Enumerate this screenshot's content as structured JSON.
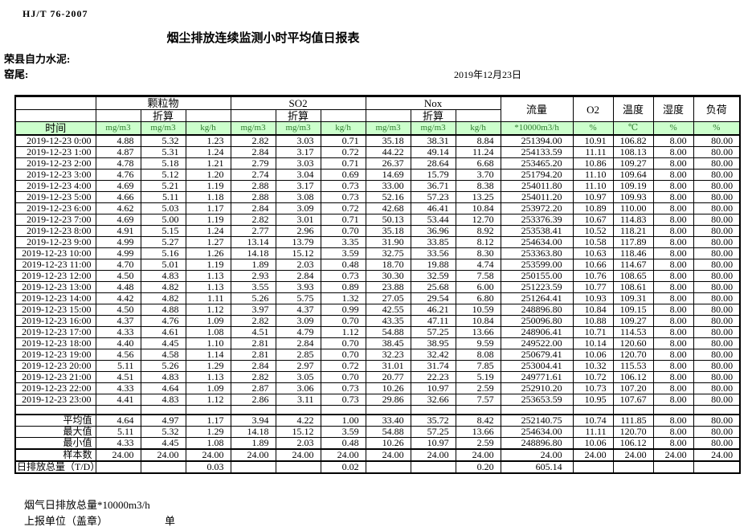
{
  "page": {
    "standard": "HJ/T  76-2007",
    "title": "烟尘排放连续监测小时平均值日报表",
    "company": "荣县自力水泥:",
    "station": "窑尾:",
    "date": "2019年12月23日"
  },
  "table": {
    "time_header": "时间",
    "converted_label": "折算",
    "groups": [
      "颗粒物",
      "SO2",
      "Nox"
    ],
    "units": [
      "mg/m3",
      "mg/m3",
      "kg/h",
      "mg/m3",
      "mg/m3",
      "kg/h",
      "mg/m3",
      "mg/m3",
      "kg/h"
    ],
    "flow": {
      "label": "流量",
      "unit": "*10000m3/h"
    },
    "o2": {
      "label": "O2",
      "unit": "%"
    },
    "temp": {
      "label": "温度",
      "unit": "℃"
    },
    "humidity": {
      "label": "湿度",
      "unit": "%"
    },
    "load": {
      "label": "负荷",
      "unit": "%"
    },
    "rows": [
      {
        "time": "2019-12-23 0:00",
        "values": [
          "4.88",
          "5.32",
          "1.23",
          "2.82",
          "3.03",
          "0.71",
          "35.18",
          "38.31",
          "8.84",
          "251394.00",
          "10.91",
          "106.82",
          "8.00",
          "80.00"
        ]
      },
      {
        "time": "2019-12-23 1:00",
        "values": [
          "4.87",
          "5.31",
          "1.24",
          "2.84",
          "3.17",
          "0.72",
          "44.22",
          "49.14",
          "11.24",
          "254133.59",
          "11.11",
          "108.13",
          "8.00",
          "80.00"
        ]
      },
      {
        "time": "2019-12-23 2:00",
        "values": [
          "4.78",
          "5.18",
          "1.21",
          "2.79",
          "3.03",
          "0.71",
          "26.37",
          "28.64",
          "6.68",
          "253465.20",
          "10.86",
          "109.27",
          "8.00",
          "80.00"
        ]
      },
      {
        "time": "2019-12-23 3:00",
        "values": [
          "4.76",
          "5.12",
          "1.20",
          "2.74",
          "3.04",
          "0.69",
          "14.69",
          "15.79",
          "3.70",
          "251794.20",
          "11.10",
          "109.64",
          "8.00",
          "80.00"
        ]
      },
      {
        "time": "2019-12-23 4:00",
        "values": [
          "4.69",
          "5.21",
          "1.19",
          "2.88",
          "3.17",
          "0.73",
          "33.00",
          "36.71",
          "8.38",
          "254011.80",
          "11.10",
          "109.19",
          "8.00",
          "80.00"
        ]
      },
      {
        "time": "2019-12-23 5:00",
        "values": [
          "4.66",
          "5.11",
          "1.18",
          "2.88",
          "3.08",
          "0.73",
          "52.16",
          "57.23",
          "13.25",
          "254011.20",
          "10.97",
          "109.93",
          "8.00",
          "80.00"
        ]
      },
      {
        "time": "2019-12-23 6:00",
        "values": [
          "4.62",
          "5.03",
          "1.17",
          "2.84",
          "3.09",
          "0.72",
          "42.68",
          "46.41",
          "10.84",
          "253972.20",
          "10.89",
          "110.00",
          "8.00",
          "80.00"
        ]
      },
      {
        "time": "2019-12-23 7:00",
        "values": [
          "4.69",
          "5.00",
          "1.19",
          "2.82",
          "3.01",
          "0.71",
          "50.13",
          "53.44",
          "12.70",
          "253376.39",
          "10.67",
          "114.83",
          "8.00",
          "80.00"
        ]
      },
      {
        "time": "2019-12-23 8:00",
        "values": [
          "4.91",
          "5.15",
          "1.24",
          "2.77",
          "2.96",
          "0.70",
          "35.18",
          "36.96",
          "8.92",
          "253538.41",
          "10.52",
          "118.21",
          "8.00",
          "80.00"
        ]
      },
      {
        "time": "2019-12-23 9:00",
        "values": [
          "4.99",
          "5.27",
          "1.27",
          "13.14",
          "13.79",
          "3.35",
          "31.90",
          "33.85",
          "8.12",
          "254634.00",
          "10.58",
          "117.89",
          "8.00",
          "80.00"
        ]
      },
      {
        "time": "2019-12-23 10:00",
        "values": [
          "4.99",
          "5.16",
          "1.26",
          "14.18",
          "15.12",
          "3.59",
          "32.75",
          "33.56",
          "8.30",
          "253363.80",
          "10.63",
          "118.46",
          "8.00",
          "80.00"
        ]
      },
      {
        "time": "2019-12-23 11:00",
        "values": [
          "4.70",
          "5.01",
          "1.19",
          "1.89",
          "2.03",
          "0.48",
          "18.70",
          "19.88",
          "4.74",
          "253599.00",
          "10.66",
          "114.67",
          "8.00",
          "80.00"
        ]
      },
      {
        "time": "2019-12-23 12:00",
        "values": [
          "4.50",
          "4.83",
          "1.13",
          "2.93",
          "2.84",
          "0.73",
          "30.30",
          "32.59",
          "7.58",
          "250155.00",
          "10.76",
          "108.65",
          "8.00",
          "80.00"
        ]
      },
      {
        "time": "2019-12-23 13:00",
        "values": [
          "4.48",
          "4.82",
          "1.13",
          "3.55",
          "3.93",
          "0.89",
          "23.88",
          "25.68",
          "6.00",
          "251223.59",
          "10.77",
          "108.61",
          "8.00",
          "80.00"
        ]
      },
      {
        "time": "2019-12-23 14:00",
        "values": [
          "4.42",
          "4.82",
          "1.11",
          "5.26",
          "5.75",
          "1.32",
          "27.05",
          "29.54",
          "6.80",
          "251264.41",
          "10.93",
          "109.31",
          "8.00",
          "80.00"
        ]
      },
      {
        "time": "2019-12-23 15:00",
        "values": [
          "4.50",
          "4.88",
          "1.12",
          "3.97",
          "4.37",
          "0.99",
          "42.55",
          "46.21",
          "10.59",
          "248896.80",
          "10.84",
          "109.15",
          "8.00",
          "80.00"
        ]
      },
      {
        "time": "2019-12-23 16:00",
        "values": [
          "4.37",
          "4.76",
          "1.09",
          "2.82",
          "3.09",
          "0.70",
          "43.35",
          "47.11",
          "10.84",
          "250096.80",
          "10.88",
          "109.27",
          "8.00",
          "80.00"
        ]
      },
      {
        "time": "2019-12-23 17:00",
        "values": [
          "4.33",
          "4.61",
          "1.08",
          "4.51",
          "4.79",
          "1.12",
          "54.88",
          "57.25",
          "13.66",
          "248906.41",
          "10.71",
          "114.53",
          "8.00",
          "80.00"
        ]
      },
      {
        "time": "2019-12-23 18:00",
        "values": [
          "4.40",
          "4.45",
          "1.10",
          "2.81",
          "2.84",
          "0.70",
          "38.45",
          "38.95",
          "9.59",
          "249522.00",
          "10.14",
          "120.60",
          "8.00",
          "80.00"
        ]
      },
      {
        "time": "2019-12-23 19:00",
        "values": [
          "4.56",
          "4.58",
          "1.14",
          "2.81",
          "2.85",
          "0.70",
          "32.23",
          "32.42",
          "8.08",
          "250679.41",
          "10.06",
          "120.70",
          "8.00",
          "80.00"
        ]
      },
      {
        "time": "2019-12-23 20:00",
        "values": [
          "5.11",
          "5.26",
          "1.29",
          "2.84",
          "2.97",
          "0.72",
          "31.01",
          "31.74",
          "7.85",
          "253004.41",
          "10.32",
          "115.53",
          "8.00",
          "80.00"
        ]
      },
      {
        "time": "2019-12-23 21:00",
        "values": [
          "4.51",
          "4.83",
          "1.13",
          "2.82",
          "3.05",
          "0.70",
          "20.77",
          "22.23",
          "5.19",
          "249771.61",
          "10.72",
          "106.12",
          "8.00",
          "80.00"
        ]
      },
      {
        "time": "2019-12-23 22:00",
        "values": [
          "4.33",
          "4.64",
          "1.09",
          "2.87",
          "3.06",
          "0.73",
          "10.26",
          "10.97",
          "2.59",
          "252910.20",
          "10.73",
          "107.20",
          "8.00",
          "80.00"
        ]
      },
      {
        "time": "2019-12-23 23:00",
        "values": [
          "4.41",
          "4.83",
          "1.12",
          "2.86",
          "3.11",
          "0.73",
          "29.86",
          "32.66",
          "7.57",
          "253653.59",
          "10.95",
          "107.67",
          "8.00",
          "80.00"
        ]
      }
    ],
    "summary": [
      {
        "label": "平均值",
        "values": [
          "4.64",
          "4.97",
          "1.17",
          "3.94",
          "4.22",
          "1.00",
          "33.40",
          "35.72",
          "8.42",
          "252140.75",
          "10.74",
          "111.85",
          "8.00",
          "80.00"
        ]
      },
      {
        "label": "最大值",
        "values": [
          "5.11",
          "5.32",
          "1.29",
          "14.18",
          "15.12",
          "3.59",
          "54.88",
          "57.25",
          "13.66",
          "254634.00",
          "11.11",
          "120.70",
          "8.00",
          "80.00"
        ]
      },
      {
        "label": "最小值",
        "values": [
          "4.33",
          "4.45",
          "1.08",
          "1.89",
          "2.03",
          "0.48",
          "10.26",
          "10.97",
          "2.59",
          "248896.80",
          "10.06",
          "106.12",
          "8.00",
          "80.00"
        ]
      },
      {
        "label": "样本数",
        "values": [
          "24.00",
          "24.00",
          "24.00",
          "24.00",
          "24.00",
          "24.00",
          "24.00",
          "24.00",
          "24.00",
          "24.00",
          "24.00",
          "24.00",
          "24.00",
          "24.00"
        ]
      }
    ],
    "daily_total": {
      "label": "日排放总量（T/D）",
      "values": [
        "",
        "",
        "0.03",
        "",
        "",
        "0.02",
        "",
        "",
        "0.20",
        "605.14",
        "",
        "",
        "",
        ""
      ]
    }
  },
  "footer": {
    "flue_gas_note": "烟气日排放总量*10000m3/h",
    "reporting_unit": "上报单位（盖章）",
    "unit_label": "单位"
  }
}
